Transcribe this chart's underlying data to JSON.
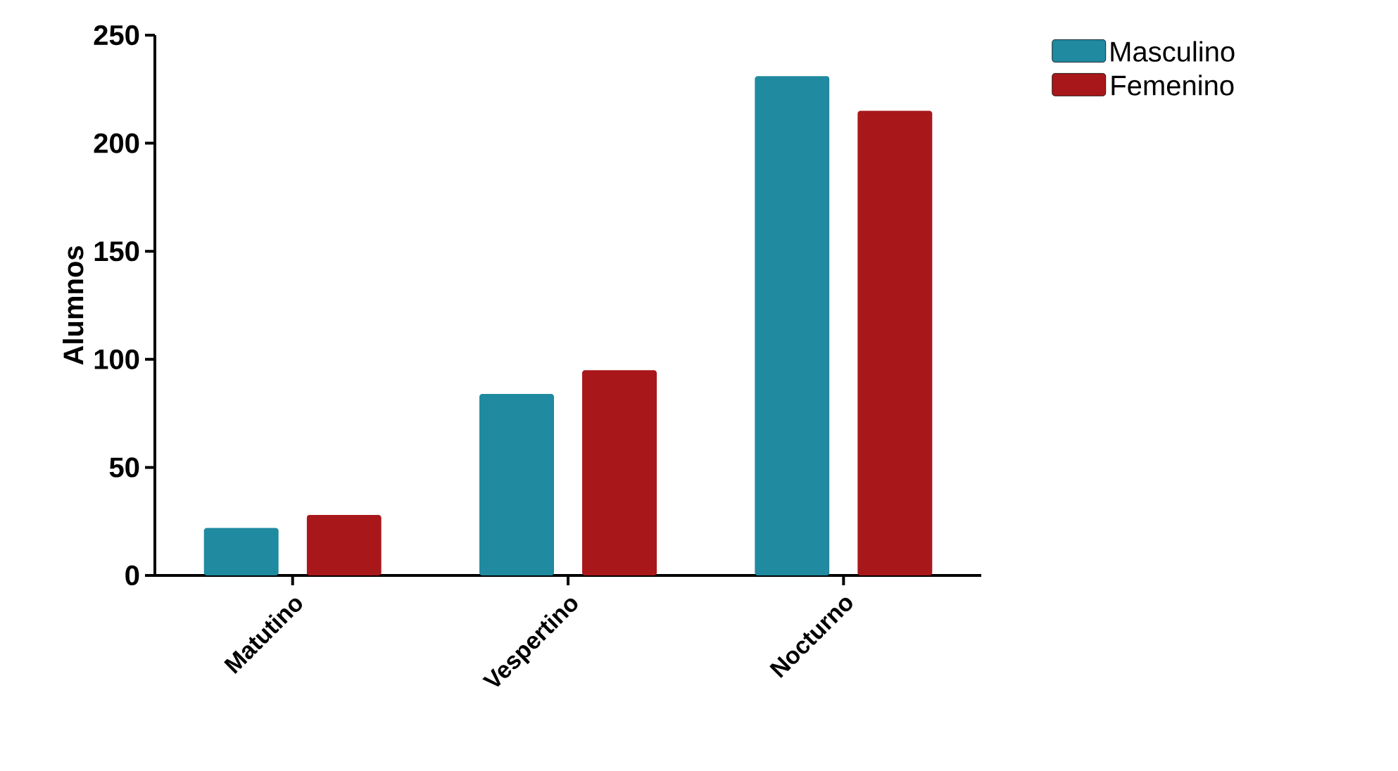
{
  "chart_data": {
    "type": "bar",
    "ylabel": "Alumnos",
    "categories": [
      "Matutino",
      "Vespertino",
      "Nocturno"
    ],
    "series": [
      {
        "name": "Masculino",
        "color": "#1f8aa0",
        "values": [
          22,
          84,
          231
        ]
      },
      {
        "name": "Femenino",
        "color": "#a8181a",
        "values": [
          28,
          95,
          215
        ]
      }
    ],
    "ylim": [
      0,
      250
    ],
    "yticks": [
      0,
      50,
      100,
      150,
      200,
      250
    ],
    "grid": false,
    "legend": "top right"
  }
}
